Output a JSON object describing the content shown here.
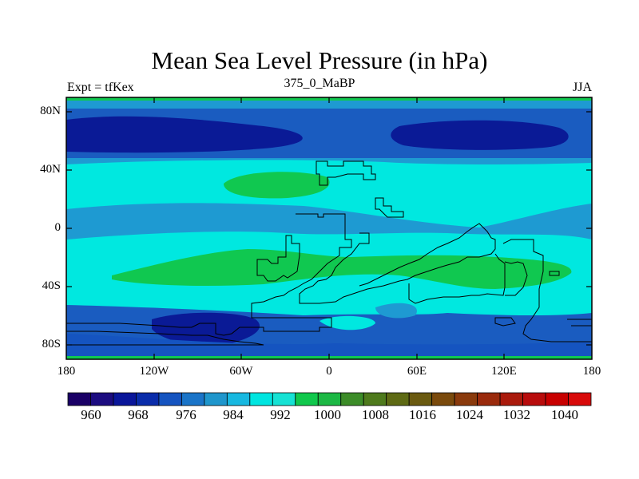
{
  "header": {
    "title": "Mean Sea Level Pressure (in hPa)",
    "left": "Expt = tfKex",
    "center": "375_0_MaBP",
    "right": "JJA"
  },
  "axes": {
    "y_ticks": [
      "80N",
      "40N",
      "0",
      "40S",
      "80S"
    ],
    "x_ticks": [
      "180",
      "120W",
      "60W",
      "0",
      "60E",
      "120E",
      "180"
    ]
  },
  "colorbar": {
    "labels": [
      "960",
      "968",
      "976",
      "984",
      "992",
      "1000",
      "1008",
      "1016",
      "1024",
      "1032",
      "1040"
    ],
    "colors": [
      "#1a0066",
      "#1c0c80",
      "#0a169a",
      "#0a2caa",
      "#1554c0",
      "#1a74c8",
      "#1f96cc",
      "#17b8e0",
      "#00e5e0",
      "#16e2d4",
      "#10c84c",
      "#1cb844",
      "#3c8c28",
      "#4e7a1c",
      "#5e6a14",
      "#6a5a10",
      "#7a4a0c",
      "#8a3a0c",
      "#9a2a0c",
      "#aa1a0c",
      "#b80c0c",
      "#c80000",
      "#d80a0a"
    ]
  },
  "colors": {
    "deep_low": "#0a1a96",
    "low": "#1a5cc0",
    "mid": "#1e9ad2",
    "cyan": "#00e8e0",
    "green": "#10c850",
    "land_outline": "#000000"
  }
}
